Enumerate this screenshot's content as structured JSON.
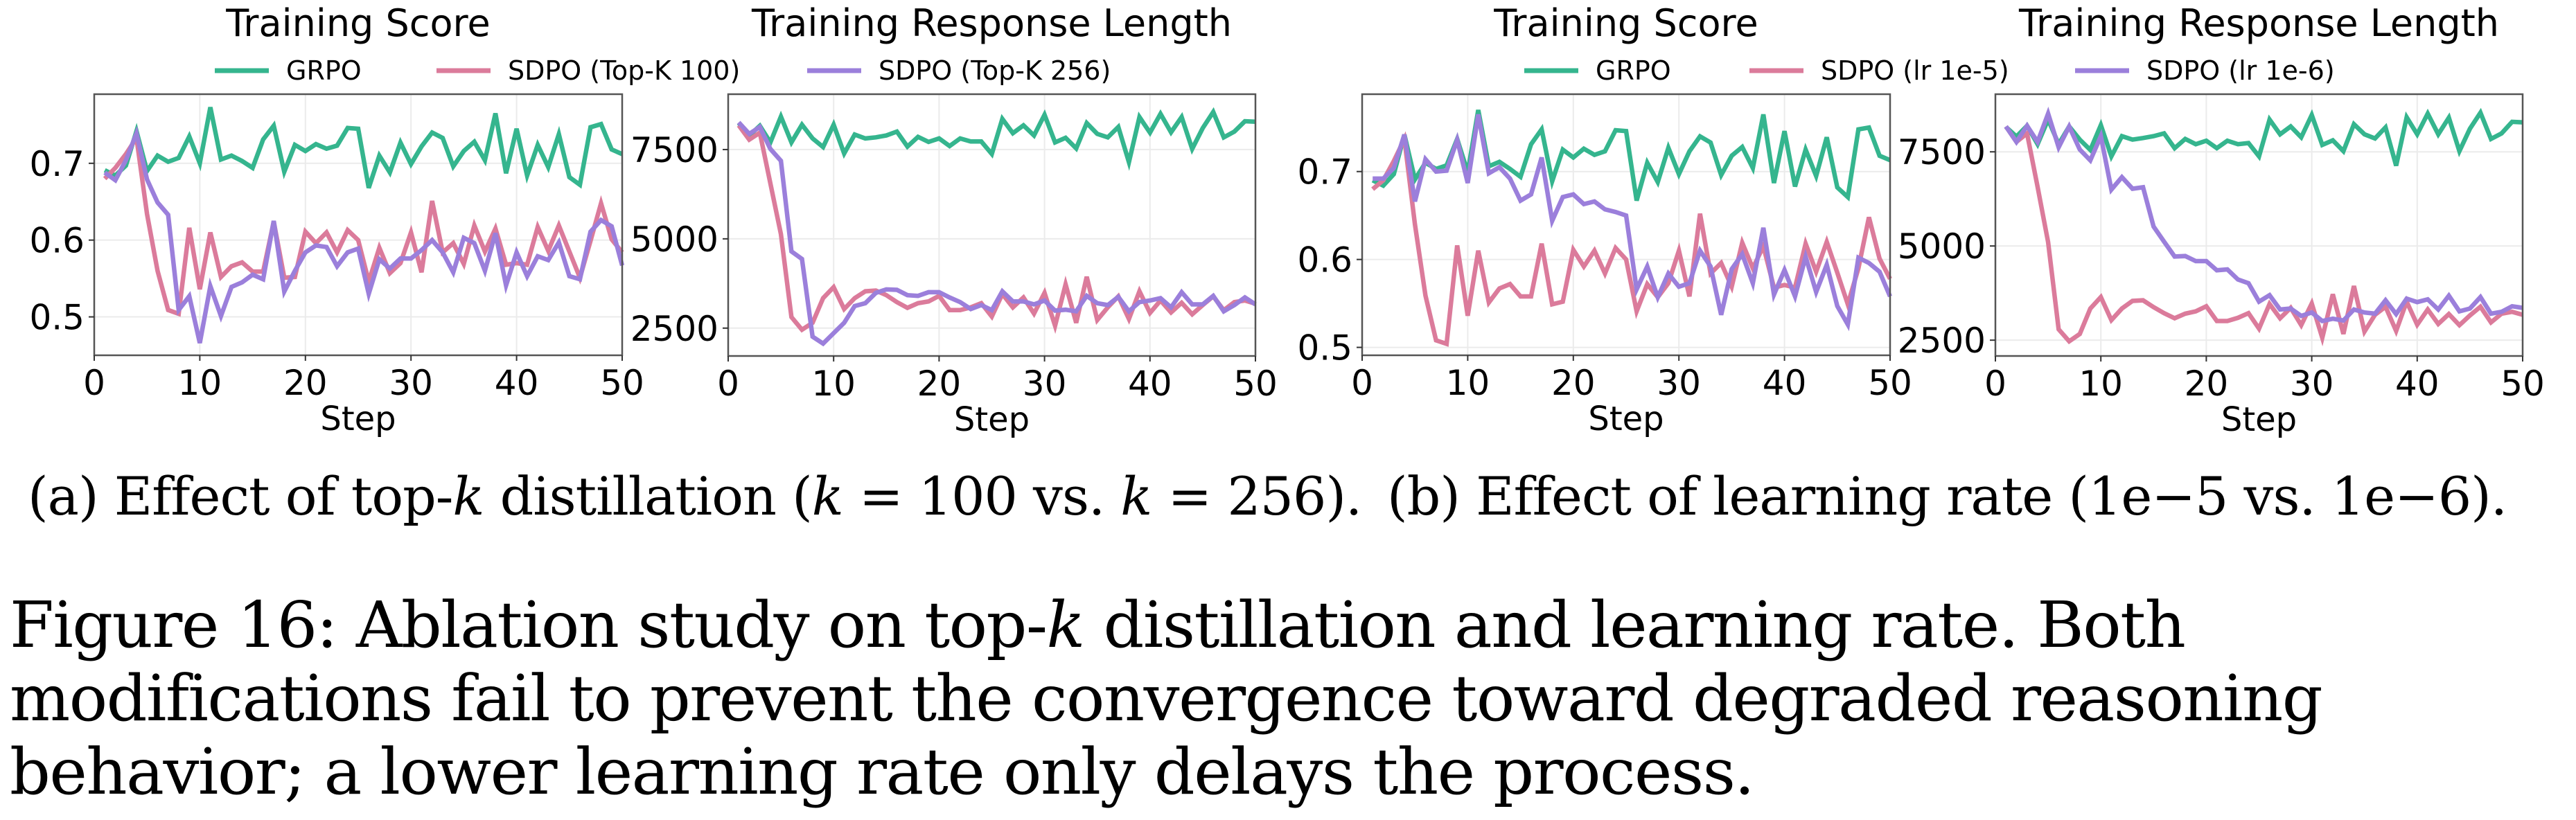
{
  "chart_data": [
    {
      "type": "line",
      "group": "a",
      "title": "Training Score",
      "xlabel": "Step",
      "ylabel": "",
      "xlim": [
        0,
        50
      ],
      "ylim": [
        0.45,
        0.79
      ],
      "xticks": [
        0,
        10,
        20,
        30,
        40,
        50
      ],
      "yticks": [
        0.5,
        0.6,
        0.7
      ],
      "ytick_labels": [
        "0.5",
        "0.6",
        "0.7"
      ],
      "grid": true,
      "x": [
        1,
        2,
        3,
        4,
        5,
        6,
        7,
        8,
        9,
        10,
        11,
        12,
        13,
        14,
        15,
        16,
        17,
        18,
        19,
        20,
        21,
        22,
        23,
        24,
        25,
        26,
        27,
        28,
        29,
        30,
        31,
        32,
        33,
        34,
        35,
        36,
        37,
        38,
        39,
        40,
        41,
        42,
        43,
        44,
        45,
        46,
        47,
        48,
        49,
        50
      ],
      "series": [
        {
          "name": "GRPO",
          "color": "#35b58e",
          "values": [
            0.691,
            0.684,
            0.697,
            0.742,
            0.69,
            0.71,
            0.702,
            0.707,
            0.735,
            0.7,
            0.773,
            0.705,
            0.71,
            0.703,
            0.694,
            0.731,
            0.749,
            0.689,
            0.724,
            0.716,
            0.725,
            0.719,
            0.723,
            0.746,
            0.745,
            0.668,
            0.71,
            0.688,
            0.727,
            0.699,
            0.722,
            0.74,
            0.733,
            0.696,
            0.716,
            0.728,
            0.704,
            0.765,
            0.687,
            0.745,
            0.684,
            0.724,
            0.695,
            0.738,
            0.682,
            0.672,
            0.747,
            0.751,
            0.718,
            0.712
          ]
        },
        {
          "name": "SDPO (Top-K 100)",
          "color": "#db7b9b",
          "values": [
            0.68,
            0.694,
            0.712,
            0.733,
            0.634,
            0.56,
            0.509,
            0.504,
            0.616,
            0.536,
            0.61,
            0.552,
            0.566,
            0.571,
            0.559,
            0.559,
            0.624,
            0.551,
            0.552,
            0.611,
            0.596,
            0.61,
            0.584,
            0.613,
            0.6,
            0.546,
            0.59,
            0.557,
            0.57,
            0.61,
            0.558,
            0.651,
            0.584,
            0.596,
            0.569,
            0.619,
            0.585,
            0.615,
            0.568,
            0.57,
            0.568,
            0.617,
            0.586,
            0.619,
            0.585,
            0.551,
            0.599,
            0.648,
            0.601,
            0.584
          ]
        },
        {
          "name": "SDPO (Top-K 256)",
          "color": "#9b7fdb",
          "values": [
            0.688,
            0.678,
            0.704,
            0.739,
            0.679,
            0.649,
            0.633,
            0.509,
            0.527,
            0.466,
            0.54,
            0.501,
            0.539,
            0.545,
            0.555,
            0.549,
            0.625,
            0.533,
            0.56,
            0.584,
            0.593,
            0.591,
            0.566,
            0.584,
            0.589,
            0.53,
            0.575,
            0.563,
            0.576,
            0.576,
            0.587,
            0.6,
            0.584,
            0.558,
            0.603,
            0.596,
            0.56,
            0.609,
            0.541,
            0.584,
            0.553,
            0.579,
            0.574,
            0.597,
            0.553,
            0.549,
            0.611,
            0.626,
            0.618,
            0.567
          ]
        }
      ]
    },
    {
      "type": "line",
      "group": "a",
      "title": "Training Response Length",
      "xlabel": "Step",
      "ylabel": "",
      "xlim": [
        0,
        50
      ],
      "ylim": [
        1720,
        9050
      ],
      "xticks": [
        0,
        10,
        20,
        30,
        40,
        50
      ],
      "yticks": [
        2500,
        5000,
        7500
      ],
      "ytick_labels": [
        "2500",
        "5000",
        "7500"
      ],
      "grid": true,
      "x": [
        1,
        2,
        3,
        4,
        5,
        6,
        7,
        8,
        9,
        10,
        11,
        12,
        13,
        14,
        15,
        16,
        17,
        18,
        19,
        20,
        21,
        22,
        23,
        24,
        25,
        26,
        27,
        28,
        29,
        30,
        31,
        32,
        33,
        34,
        35,
        36,
        37,
        38,
        39,
        40,
        41,
        42,
        43,
        44,
        45,
        46,
        47,
        48,
        49,
        50
      ],
      "series": [
        {
          "name": "GRPO",
          "color": "#35b58e",
          "values": [
            8242,
            7894,
            8165,
            7700,
            8423,
            7700,
            8197,
            7810,
            7571,
            8197,
            7390,
            7919,
            7810,
            7842,
            7894,
            8003,
            7584,
            7855,
            7713,
            7810,
            7597,
            7810,
            7726,
            7726,
            7377,
            8358,
            7958,
            8177,
            7894,
            8474,
            7700,
            7829,
            7532,
            8242,
            7939,
            7842,
            8132,
            7145,
            8410,
            7971,
            8500,
            7984,
            8410,
            7519,
            8100,
            8552,
            7842,
            8003,
            8294,
            8281
          ]
        },
        {
          "name": "SDPO (Top-K 100)",
          "color": "#db7b9b",
          "values": [
            8177,
            7777,
            7971,
            6552,
            5132,
            2810,
            2455,
            2648,
            3339,
            3648,
            3035,
            3339,
            3532,
            3552,
            3423,
            3229,
            3068,
            3197,
            3248,
            3403,
            3003,
            3003,
            3081,
            3197,
            2823,
            3455,
            3081,
            3358,
            2907,
            3487,
            2565,
            3726,
            2648,
            3939,
            2726,
            3081,
            3390,
            2758,
            3532,
            2926,
            3274,
            2939,
            3210,
            2887,
            3145,
            3390,
            3003,
            3229,
            3274,
            3184
          ]
        },
        {
          "name": "SDPO (Top-K 256)",
          "color": "#9b7fdb",
          "values": [
            8261,
            7939,
            8132,
            7519,
            7184,
            4648,
            4435,
            2261,
            2068,
            2358,
            2648,
            3119,
            3197,
            3487,
            3584,
            3571,
            3423,
            3403,
            3506,
            3506,
            3358,
            3229,
            3035,
            3145,
            3003,
            3532,
            3248,
            3248,
            3164,
            3274,
            2990,
            3016,
            2971,
            3403,
            3197,
            3145,
            3377,
            2971,
            3229,
            3274,
            3339,
            3081,
            3506,
            3164,
            3164,
            3403,
            2971,
            3145,
            3358,
            3164
          ]
        }
      ]
    },
    {
      "type": "line",
      "group": "b",
      "title": "Training Score",
      "xlabel": "Step",
      "ylabel": "",
      "xlim": [
        0,
        50
      ],
      "ylim": [
        0.491,
        0.788
      ],
      "xticks": [
        0,
        10,
        20,
        30,
        40,
        50
      ],
      "yticks": [
        0.5,
        0.6,
        0.7
      ],
      "ytick_labels": [
        "0.5",
        "0.6",
        "0.7"
      ],
      "grid": true,
      "x": [
        1,
        2,
        3,
        4,
        5,
        6,
        7,
        8,
        9,
        10,
        11,
        12,
        13,
        14,
        15,
        16,
        17,
        18,
        19,
        20,
        21,
        22,
        23,
        24,
        25,
        26,
        27,
        28,
        29,
        30,
        31,
        32,
        33,
        34,
        35,
        36,
        37,
        38,
        39,
        40,
        41,
        42,
        43,
        44,
        45,
        46,
        47,
        48,
        49,
        50
      ],
      "series": [
        {
          "name": "GRPO",
          "color": "#35b58e",
          "values": [
            0.69,
            0.684,
            0.697,
            0.742,
            0.691,
            0.71,
            0.703,
            0.707,
            0.737,
            0.699,
            0.77,
            0.706,
            0.711,
            0.703,
            0.694,
            0.731,
            0.748,
            0.689,
            0.725,
            0.716,
            0.726,
            0.719,
            0.723,
            0.747,
            0.746,
            0.667,
            0.71,
            0.688,
            0.727,
            0.697,
            0.723,
            0.74,
            0.733,
            0.696,
            0.718,
            0.728,
            0.704,
            0.765,
            0.687,
            0.746,
            0.683,
            0.725,
            0.695,
            0.739,
            0.682,
            0.671,
            0.748,
            0.75,
            0.718,
            0.713
          ]
        },
        {
          "name": "SDPO (lr 1e-5)",
          "color": "#db7b9b",
          "values": [
            0.68,
            0.69,
            0.712,
            0.737,
            0.64,
            0.559,
            0.508,
            0.504,
            0.616,
            0.536,
            0.61,
            0.551,
            0.567,
            0.572,
            0.558,
            0.558,
            0.618,
            0.549,
            0.552,
            0.611,
            0.592,
            0.61,
            0.584,
            0.613,
            0.6,
            0.541,
            0.572,
            0.557,
            0.573,
            0.61,
            0.558,
            0.652,
            0.584,
            0.596,
            0.569,
            0.619,
            0.59,
            0.615,
            0.568,
            0.571,
            0.568,
            0.618,
            0.586,
            0.62,
            0.585,
            0.549,
            0.59,
            0.648,
            0.601,
            0.578
          ]
        },
        {
          "name": "SDPO (lr 1e-6)",
          "color": "#9b7fdb",
          "values": [
            0.692,
            0.692,
            0.704,
            0.742,
            0.666,
            0.714,
            0.7,
            0.701,
            0.736,
            0.687,
            0.765,
            0.698,
            0.705,
            0.692,
            0.667,
            0.674,
            0.716,
            0.644,
            0.671,
            0.674,
            0.663,
            0.666,
            0.657,
            0.654,
            0.65,
            0.566,
            0.592,
            0.557,
            0.584,
            0.569,
            0.573,
            0.61,
            0.592,
            0.537,
            0.589,
            0.606,
            0.573,
            0.636,
            0.56,
            0.588,
            0.558,
            0.603,
            0.563,
            0.594,
            0.547,
            0.526,
            0.602,
            0.596,
            0.586,
            0.558
          ]
        }
      ]
    },
    {
      "type": "line",
      "group": "b",
      "title": "Training Response Length",
      "xlabel": "Step",
      "ylabel": "",
      "xlim": [
        0,
        50
      ],
      "ylim": [
        2080,
        9030
      ],
      "xticks": [
        0,
        10,
        20,
        30,
        40,
        50
      ],
      "yticks": [
        2500,
        5000,
        7500
      ],
      "ytick_labels": [
        "2500",
        "5000",
        "7500"
      ],
      "grid": true,
      "x": [
        1,
        2,
        3,
        4,
        5,
        6,
        7,
        8,
        9,
        10,
        11,
        12,
        13,
        14,
        15,
        16,
        17,
        18,
        19,
        20,
        21,
        22,
        23,
        24,
        25,
        26,
        27,
        28,
        29,
        30,
        31,
        32,
        33,
        34,
        35,
        36,
        37,
        38,
        39,
        40,
        41,
        42,
        43,
        44,
        45,
        46,
        47,
        48,
        49,
        50
      ],
      "series": [
        {
          "name": "GRPO",
          "color": "#35b58e",
          "values": [
            8161,
            7904,
            8192,
            7702,
            8357,
            7702,
            8173,
            7824,
            7549,
            8210,
            7378,
            7916,
            7824,
            7867,
            7916,
            7990,
            7598,
            7843,
            7702,
            7794,
            7598,
            7794,
            7702,
            7733,
            7378,
            8357,
            7965,
            8173,
            7886,
            8479,
            7684,
            7806,
            7518,
            8234,
            7965,
            7855,
            8149,
            7133,
            8418,
            7965,
            8516,
            7965,
            8406,
            7518,
            8112,
            8540,
            7843,
            7990,
            8296,
            8283
          ]
        },
        {
          "name": "SDPO (lr 1e-5)",
          "color": "#db7b9b",
          "values": [
            8173,
            7763,
            7990,
            6570,
            5101,
            2788,
            2469,
            2665,
            3339,
            3645,
            3033,
            3339,
            3541,
            3559,
            3376,
            3217,
            3082,
            3204,
            3265,
            3400,
            3008,
            3008,
            3094,
            3217,
            2806,
            3461,
            3082,
            3357,
            2898,
            3474,
            2561,
            3719,
            2665,
            3937,
            2727,
            3174,
            3388,
            2745,
            3523,
            2911,
            3314,
            2929,
            3192,
            2898,
            3155,
            3388,
            2972,
            3204,
            3253,
            3174
          ]
        },
        {
          "name": "SDPO (lr 1e-6)",
          "color": "#9b7fdb",
          "values": [
            8173,
            7763,
            8192,
            7763,
            8516,
            7622,
            8173,
            7561,
            7274,
            7916,
            6496,
            6827,
            6521,
            6558,
            5517,
            5113,
            4721,
            4734,
            4599,
            4599,
            4354,
            4379,
            4110,
            4012,
            3523,
            3694,
            3314,
            3339,
            3143,
            3235,
            3008,
            3069,
            3021,
            3314,
            3235,
            3204,
            3559,
            3192,
            3602,
            3510,
            3584,
            3314,
            3682,
            3265,
            3339,
            3645,
            3204,
            3253,
            3400,
            3357
          ]
        }
      ]
    }
  ],
  "legends": {
    "a": [
      "GRPO",
      "SDPO (Top-K 100)",
      "SDPO (Top-K 256)"
    ],
    "b": [
      "GRPO",
      "SDPO (lr 1e-5)",
      "SDPO (lr 1e-6)"
    ]
  },
  "captions": {
    "a": {
      "prefix": "(a) Effect of top-",
      "k": "k",
      "mid": " distillation (",
      "k2": "k",
      "eq1": " = 100 vs. ",
      "k3": "k",
      "eq2": " = 256)."
    },
    "b": "(b) Effect of learning rate (1e−5 vs. 1e−6).",
    "figure": {
      "before": "Figure 16: Ablation study on top-",
      "k": "k",
      "after": " distillation and learning rate. Both modifications fail to prevent the convergence toward degraded reasoning behavior; a lower learning rate only delays the process."
    }
  }
}
